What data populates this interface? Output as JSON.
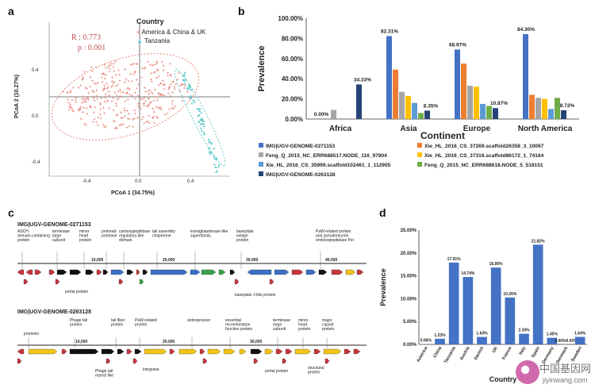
{
  "panels": {
    "a": "a",
    "b": "b",
    "c": "c",
    "d": "d"
  },
  "panel_a": {
    "stats": {
      "r": "R : 0.773",
      "p": "p : 0.001"
    },
    "legend_title": "Country",
    "legend": [
      "America & China & UK",
      "Tanzania"
    ],
    "xlabel": "PCoA 1 (34.75%)",
    "ylabel": "PCoA 2 (10.27%)",
    "xticks": [
      "-0.4",
      "0.0",
      "0.4"
    ],
    "yticks": [
      "0.4",
      "0.0",
      "-0.4"
    ],
    "colors": {
      "group1": "#e8877a",
      "group2": "#5fc9c9"
    }
  },
  "panel_c": {
    "genome1": {
      "title": "IMG|UGV-GENOME-0271153",
      "top_labels": [
        "ASCH\ndomain-containing\nprotein",
        "terminase\nlarge\nsubunit",
        "minor\nhead\nprotein",
        "prohead\nprotease",
        "carboxypeptidase\nregulatory-like\ndomain",
        "tail assembly\nchaperone",
        "transglutaminase-like\nsuperfamily",
        "baseplate\nwedge\nprotein",
        "PaW-related protein\nand pseudomurein\nendoisopeptidase Pei"
      ],
      "positions": [
        "10,000",
        "20,000",
        "30,000",
        "40,000"
      ],
      "bottom_labels": [
        "portal protein",
        "baseplate J-like protein"
      ]
    },
    "genome2": {
      "title": "IMG|UGV-GENOME-0263128",
      "top_labels": [
        "prominin",
        "Phage tail\nprotein",
        "tail fiber\nprotein",
        "PaW-related\nprotein",
        "antirepressor",
        "essential\nrecombination\nfunction protein",
        "terminase\nlarge\nsubunit",
        "minor\nhead\nprotein",
        "major\ncapsid\nprotein"
      ],
      "positions": [
        "10,000",
        "20,000",
        "30,000"
      ],
      "bottom_labels": [
        "Phage tail\nrepeat like",
        "integrase",
        "portal protein",
        "structural\nprotein"
      ]
    }
  },
  "watermark": {
    "main": "中国基因网",
    "sub": "jiyinwang.com"
  },
  "chart_data": [
    {
      "type": "bar",
      "categories": [
        "Africa",
        "Asia",
        "Europe",
        "North America"
      ],
      "series": [
        {
          "name": "IMG|UGV-GENOME-0271153",
          "values": [
            0.0,
            82.31,
            68.97,
            84.3
          ],
          "color": "#4472c4"
        },
        {
          "name": "Xie_HL_2016_CS_37269.scaffold26358_3_10067",
          "values": [
            0.0,
            49,
            55,
            24
          ],
          "color": "#ed7d31"
        },
        {
          "name": "Feng_Q_2015_NC_ERR688517.NODE_116_97804",
          "values": [
            9,
            27,
            33,
            21
          ],
          "color": "#a5a5a5"
        },
        {
          "name": "Xie_HL_2016_CS_37316.scaffold86172_1_74164",
          "values": [
            0.0,
            23,
            32,
            20
          ],
          "color": "#ffc000"
        },
        {
          "name": "Xie_HL_2016_CS_35999.scaffold102461_1_112905",
          "values": [
            0.0,
            16,
            15,
            10
          ],
          "color": "#5b9bd5"
        },
        {
          "name": "Feng_Q_2015_NC_ERR688618.NODE_5_518151",
          "values": [
            0.0,
            6,
            13,
            21
          ],
          "color": "#70ad47"
        },
        {
          "name": "IMG|UGV-GENOME-0263128",
          "values": [
            34.33,
            8.35,
            10.87,
            8.72
          ],
          "color": "#264478"
        }
      ],
      "data_labels": [
        "0.00%",
        "82.31%",
        "34.33%",
        "8.35%",
        "68.97%",
        "10.87%",
        "84.30%",
        "8.72%"
      ],
      "yticks": [
        "100.00%",
        "80.00%",
        "60.00%",
        "40.00%",
        "20.00%",
        "0.00%"
      ],
      "ylim": [
        0,
        100
      ],
      "xlabel": "Continent",
      "ylabel": "Prevalence",
      "legend": "bottom"
    },
    {
      "type": "bar",
      "categories": [
        "America",
        "China",
        "Tanzania",
        "Austria",
        "Danish",
        "UK",
        "France",
        "Italy",
        "Spain",
        "Germany",
        "Denmark",
        "Sweden"
      ],
      "values": [
        0.08,
        1.23,
        17.91,
        14.74,
        1.63,
        16.8,
        10.26,
        2.33,
        21.82,
        1.45,
        0.0,
        1.64
      ],
      "data_labels": [
        "0.08%",
        "1.23%",
        "17.91%",
        "14.74%",
        "1.63%",
        "16.80%",
        "10.26%",
        "2.33%",
        "21.82%",
        "1.45%",
        "0.00%0.00%",
        "1.64%"
      ],
      "yticks": [
        "25.00%",
        "20.00%",
        "15.00%",
        "10.00%",
        "5.00%",
        "0.00%"
      ],
      "ylim": [
        0,
        25
      ],
      "xlabel": "Country",
      "ylabel": "Prevalence",
      "color": "#4472c4"
    }
  ]
}
